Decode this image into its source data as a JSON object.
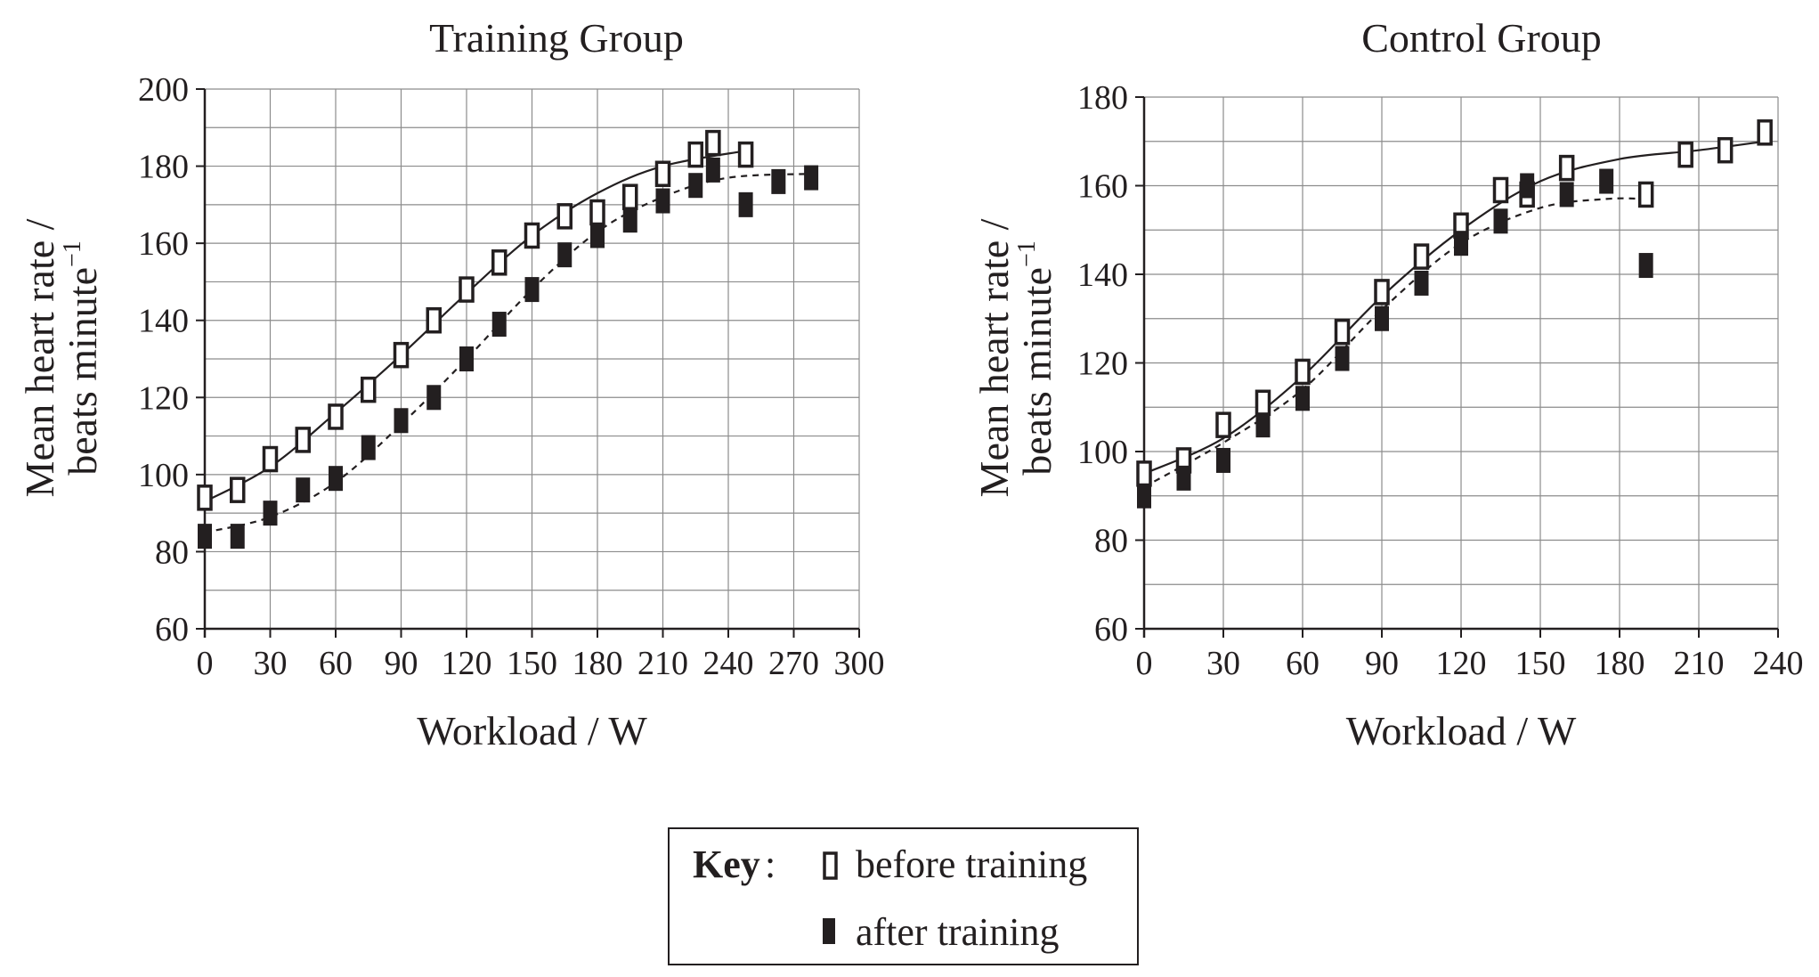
{
  "chart_data": [
    {
      "type": "scatter",
      "title": "Training Group",
      "xlabel": "Workload / W",
      "ylabel_line1": "Mean heart rate /",
      "ylabel_line2": "beats minute",
      "ylabel_sup": "−1",
      "xlim": [
        0,
        300
      ],
      "ylim": [
        60,
        200
      ],
      "xticks": [
        0,
        30,
        60,
        90,
        120,
        150,
        180,
        210,
        240,
        270,
        300
      ],
      "yticks": [
        60,
        80,
        100,
        120,
        140,
        160,
        180,
        200
      ],
      "grid": true,
      "series": [
        {
          "marker": "open",
          "line": "solid",
          "x": [
            0,
            15,
            30,
            45,
            60,
            75,
            90,
            105,
            120,
            135,
            150,
            165,
            180,
            195,
            210,
            225,
            233,
            248
          ],
          "y": [
            94,
            96,
            104,
            109,
            115,
            122,
            131,
            140,
            148,
            155,
            162,
            167,
            168,
            172,
            178,
            183,
            186,
            183
          ],
          "fit": [
            [
              0,
              93
            ],
            [
              30,
              102
            ],
            [
              60,
              116
            ],
            [
              90,
              131
            ],
            [
              120,
              147
            ],
            [
              150,
              162
            ],
            [
              180,
              173
            ],
            [
              210,
              180
            ],
            [
              248,
              184
            ]
          ]
        },
        {
          "marker": "filled",
          "line": "dashed",
          "x": [
            0,
            15,
            30,
            45,
            60,
            75,
            90,
            105,
            120,
            135,
            150,
            165,
            180,
            195,
            210,
            225,
            233,
            248,
            263,
            278
          ],
          "y": [
            84,
            84,
            90,
            96,
            99,
            107,
            114,
            120,
            130,
            139,
            148,
            157,
            162,
            166,
            171,
            175,
            179,
            170,
            176,
            177
          ],
          "fit": [
            [
              0,
              85
            ],
            [
              30,
              89
            ],
            [
              60,
              98
            ],
            [
              90,
              113
            ],
            [
              120,
              130
            ],
            [
              150,
              148
            ],
            [
              180,
              163
            ],
            [
              210,
              172
            ],
            [
              240,
              177
            ],
            [
              278,
              178
            ]
          ]
        }
      ]
    },
    {
      "type": "scatter",
      "title": "Control Group",
      "xlabel": "Workload / W",
      "ylabel_line1": "Mean heart rate /",
      "ylabel_line2": "beats minute",
      "ylabel_sup": "−1",
      "xlim": [
        0,
        240
      ],
      "ylim": [
        60,
        180
      ],
      "xticks": [
        0,
        30,
        60,
        90,
        120,
        150,
        180,
        210,
        240
      ],
      "yticks": [
        60,
        80,
        100,
        120,
        140,
        160,
        180
      ],
      "grid": true,
      "series": [
        {
          "marker": "open",
          "line": "solid",
          "x": [
            0,
            15,
            30,
            45,
            60,
            75,
            90,
            105,
            120,
            135,
            145,
            160,
            190,
            205,
            220,
            235
          ],
          "y": [
            95,
            98,
            106,
            111,
            118,
            127,
            136,
            144,
            151,
            159,
            158,
            164,
            158,
            167,
            168,
            172
          ],
          "fit": [
            [
              0,
              95
            ],
            [
              30,
              103
            ],
            [
              60,
              117
            ],
            [
              90,
              135
            ],
            [
              120,
              150
            ],
            [
              150,
              161
            ],
            [
              180,
              166
            ],
            [
              210,
              168
            ],
            [
              235,
              170
            ]
          ]
        },
        {
          "marker": "filled",
          "line": "dashed",
          "x": [
            0,
            15,
            30,
            45,
            60,
            75,
            90,
            105,
            120,
            135,
            145,
            160,
            175,
            190
          ],
          "y": [
            90,
            94,
            98,
            106,
            112,
            121,
            130,
            138,
            147,
            152,
            160,
            158,
            161,
            142
          ],
          "fit": [
            [
              0,
              92
            ],
            [
              30,
              102
            ],
            [
              60,
              114
            ],
            [
              90,
              132
            ],
            [
              120,
              147
            ],
            [
              150,
              155
            ],
            [
              175,
              157
            ],
            [
              190,
              157
            ]
          ]
        }
      ]
    }
  ],
  "legend": {
    "key_label": "Key",
    "key_colon": ":",
    "entries": [
      {
        "marker": "open",
        "label": "before training"
      },
      {
        "marker": "filled",
        "label": "after training"
      }
    ]
  }
}
